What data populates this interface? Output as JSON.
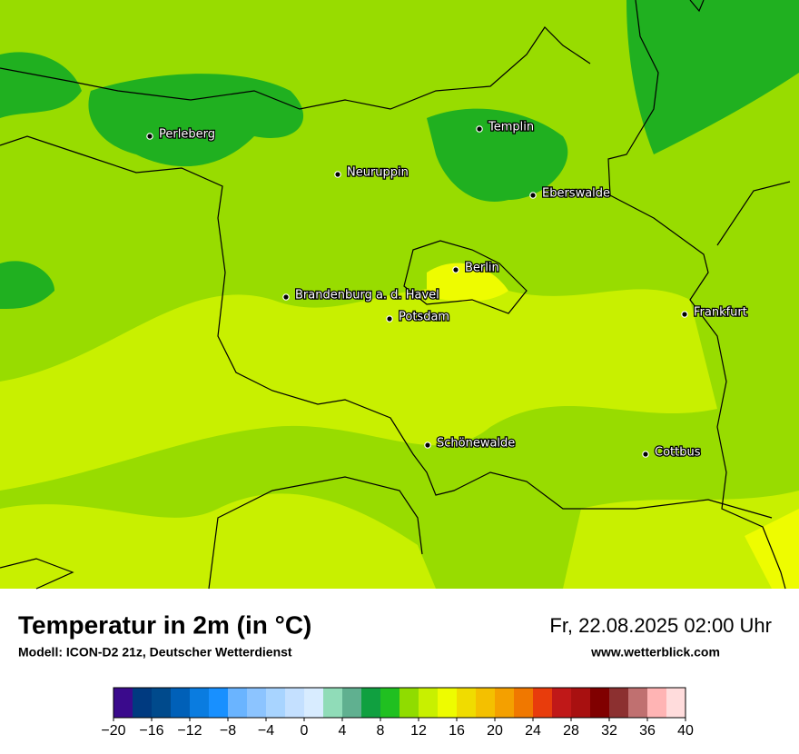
{
  "map": {
    "cities": [
      "Perleberg",
      "Templin",
      "Neuruppin",
      "Eberswalde",
      "Berlin",
      "Brandenburg a. d. Havel",
      "Potsdam",
      "Frankfurt",
      "Schönewalde",
      "Cottbus"
    ]
  },
  "legend": {
    "title": "Temperatur in 2m (in °C)",
    "model": "Modell: ICON-D2 21z, Deutscher Wetterdienst",
    "valid": "Fr, 22.08.2025 02:00 Uhr",
    "source": "www.wetterblick.com"
  },
  "colorbar": {
    "lim": [
      -20,
      40
    ],
    "colors": [
      "#3a0a8c",
      "#003a80",
      "#004a8c",
      "#0060b8",
      "#0a7ce0",
      "#1890ff",
      "#6ab4ff",
      "#8cc4ff",
      "#a8d4ff",
      "#c4e0ff",
      "#d8ecff",
      "#90dcb8",
      "#60b090",
      "#10a040",
      "#20c020",
      "#90dc00",
      "#c8f000",
      "#eefc00",
      "#f0dc00",
      "#f4c000",
      "#f4a000",
      "#f07800",
      "#e83c0c",
      "#c01818",
      "#a81010",
      "#800000",
      "#8c3030",
      "#c07070",
      "#ffb4b4",
      "#ffdcdc"
    ],
    "ticks": [
      {
        "value": -20,
        "label": "−20"
      },
      {
        "value": -16,
        "label": "−16"
      },
      {
        "value": -12,
        "label": "−12"
      },
      {
        "value": -8,
        "label": "−8"
      },
      {
        "value": -4,
        "label": "−4"
      },
      0,
      4,
      8,
      12,
      16,
      20,
      24,
      28,
      32,
      36,
      40
    ]
  }
}
